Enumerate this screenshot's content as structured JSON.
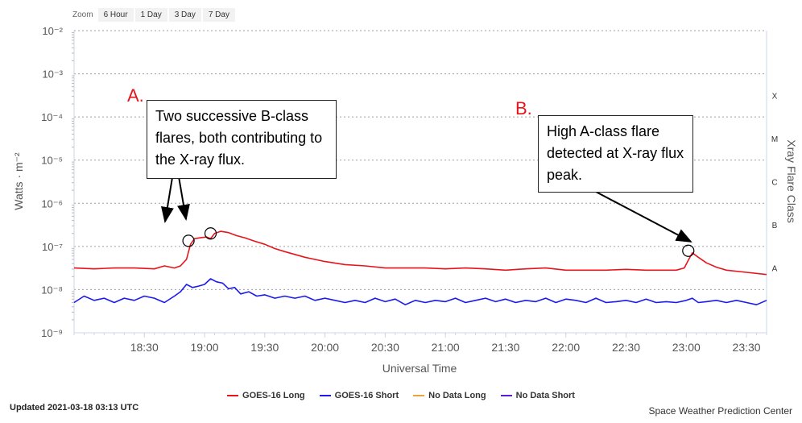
{
  "zoom": {
    "label": "Zoom",
    "buttons": [
      "6 Hour",
      "1 Day",
      "3 Day",
      "7 Day"
    ]
  },
  "chart_data": {
    "type": "line",
    "title": "",
    "xlabel": "Universal Time",
    "ylabel": "Watts · m⁻²",
    "y2label": "Xray Flare Class",
    "yscale": "log",
    "ylim_exp": [
      -9,
      -2
    ],
    "y_tick_labels": [
      "10⁻²",
      "10⁻³",
      "10⁻⁴",
      "10⁻⁵",
      "10⁻⁶",
      "10⁻⁷",
      "10⁻⁸",
      "10⁻⁹"
    ],
    "y_tick_exps": [
      -2,
      -3,
      -4,
      -5,
      -6,
      -7,
      -8,
      -9
    ],
    "class_labels": [
      "X",
      "M",
      "C",
      "B",
      "A"
    ],
    "class_exps": [
      -3.5,
      -4.5,
      -5.5,
      -6.5,
      -7.5
    ],
    "xlim_min": [
      1075,
      1420
    ],
    "x_tick_labels": [
      "18:30",
      "19:00",
      "19:30",
      "20:00",
      "20:30",
      "21:00",
      "21:30",
      "22:00",
      "22:30",
      "23:00",
      "23:30"
    ],
    "x_tick_min": [
      1110,
      1140,
      1170,
      1200,
      1230,
      1260,
      1290,
      1320,
      1350,
      1380,
      1410
    ],
    "series": [
      {
        "name": "GOES-16 Long",
        "color": "#e8141b",
        "x": [
          1075,
          1085,
          1095,
          1105,
          1115,
          1120,
          1125,
          1128,
          1131,
          1133,
          1135,
          1138,
          1141,
          1143,
          1145,
          1148,
          1152,
          1156,
          1160,
          1165,
          1170,
          1175,
          1180,
          1190,
          1200,
          1210,
          1220,
          1230,
          1240,
          1250,
          1260,
          1270,
          1280,
          1290,
          1300,
          1310,
          1320,
          1330,
          1340,
          1350,
          1360,
          1370,
          1375,
          1379,
          1381,
          1383,
          1386,
          1390,
          1395,
          1400,
          1410,
          1420
        ],
        "y": [
          -7.5,
          -7.52,
          -7.5,
          -7.5,
          -7.52,
          -7.45,
          -7.5,
          -7.45,
          -7.3,
          -6.95,
          -6.82,
          -6.8,
          -6.78,
          -6.82,
          -6.7,
          -6.65,
          -6.68,
          -6.75,
          -6.8,
          -6.88,
          -6.95,
          -7.05,
          -7.12,
          -7.25,
          -7.35,
          -7.42,
          -7.45,
          -7.5,
          -7.5,
          -7.5,
          -7.52,
          -7.5,
          -7.52,
          -7.55,
          -7.52,
          -7.5,
          -7.55,
          -7.55,
          -7.55,
          -7.53,
          -7.55,
          -7.55,
          -7.55,
          -7.5,
          -7.32,
          -7.15,
          -7.25,
          -7.38,
          -7.48,
          -7.55,
          -7.6,
          -7.65
        ]
      },
      {
        "name": "GOES-16 Short",
        "color": "#1a1aee",
        "x": [
          1075,
          1080,
          1085,
          1090,
          1095,
          1100,
          1105,
          1110,
          1115,
          1120,
          1125,
          1128,
          1131,
          1134,
          1137,
          1140,
          1143,
          1146,
          1149,
          1152,
          1155,
          1158,
          1162,
          1166,
          1170,
          1175,
          1180,
          1185,
          1190,
          1195,
          1200,
          1205,
          1210,
          1215,
          1220,
          1225,
          1230,
          1235,
          1240,
          1245,
          1250,
          1255,
          1260,
          1265,
          1270,
          1275,
          1280,
          1285,
          1290,
          1295,
          1300,
          1305,
          1310,
          1315,
          1320,
          1325,
          1330,
          1335,
          1340,
          1345,
          1350,
          1355,
          1360,
          1365,
          1370,
          1375,
          1380,
          1383,
          1386,
          1390,
          1395,
          1400,
          1405,
          1410,
          1415,
          1420
        ],
        "y": [
          -8.3,
          -8.15,
          -8.25,
          -8.2,
          -8.3,
          -8.2,
          -8.25,
          -8.15,
          -8.2,
          -8.3,
          -8.15,
          -8.05,
          -7.88,
          -7.95,
          -7.92,
          -7.88,
          -7.75,
          -7.82,
          -7.85,
          -7.98,
          -7.95,
          -8.1,
          -8.05,
          -8.15,
          -8.12,
          -8.2,
          -8.15,
          -8.2,
          -8.15,
          -8.25,
          -8.2,
          -8.25,
          -8.3,
          -8.25,
          -8.3,
          -8.2,
          -8.28,
          -8.22,
          -8.35,
          -8.25,
          -8.3,
          -8.25,
          -8.28,
          -8.2,
          -8.3,
          -8.25,
          -8.2,
          -8.28,
          -8.22,
          -8.3,
          -8.25,
          -8.28,
          -8.2,
          -8.3,
          -8.22,
          -8.25,
          -8.3,
          -8.2,
          -8.3,
          -8.28,
          -8.25,
          -8.3,
          -8.22,
          -8.3,
          -8.28,
          -8.3,
          -8.25,
          -8.2,
          -8.3,
          -8.28,
          -8.25,
          -8.3,
          -8.25,
          -8.3,
          -8.35,
          -8.25
        ]
      },
      {
        "name": "No Data Long",
        "color": "#f0a23a",
        "x": [],
        "y": []
      },
      {
        "name": "No Data Short",
        "color": "#5a1ad8",
        "x": [],
        "y": []
      }
    ],
    "markers": [
      {
        "x": 1132,
        "y": -6.87
      },
      {
        "x": 1143,
        "y": -6.7
      },
      {
        "x": 1381,
        "y": -7.1
      }
    ],
    "legend_position": "bottom-center"
  },
  "annotations": {
    "a": {
      "letter": "A.",
      "text": "Two successive B-class flares, both contributing to the X-ray flux."
    },
    "b": {
      "letter": "B.",
      "text": "High A-class flare detected at X-ray flux peak."
    }
  },
  "footer": {
    "updated": "Updated 2021-03-18 03:13 UTC",
    "credit": "Space Weather Prediction Center"
  }
}
